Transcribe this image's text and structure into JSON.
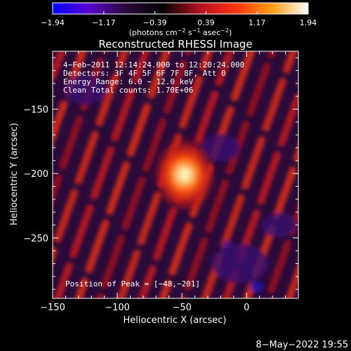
{
  "chart_data": {
    "type": "heatmap",
    "title": "Reconstructed RHESSI Image",
    "xlabel": "Heliocentric X (arcsec)",
    "ylabel": "Heliocentric Y (arcsec)",
    "xlim": [
      -150,
      40
    ],
    "ylim": [
      -297,
      -105
    ],
    "x_ticks": [
      {
        "value": -150,
        "label": "−150"
      },
      {
        "value": -100,
        "label": "−100"
      },
      {
        "value": -50,
        "label": "−50"
      },
      {
        "value": 0,
        "label": "0"
      }
    ],
    "y_ticks": [
      {
        "value": -150,
        "label": "−150"
      },
      {
        "value": -200,
        "label": "−200"
      },
      {
        "value": -250,
        "label": "−250"
      }
    ],
    "colorbar": {
      "range": [
        -1.94,
        1.94
      ],
      "tick_labels": [
        "−1.94",
        "−1.17",
        "−0.39",
        "0.39",
        "1.17",
        "1.94"
      ],
      "unit_parts": [
        "(photons cm",
        "−2",
        " s",
        "−1",
        " asec",
        "−2",
        ")"
      ],
      "colors": [
        "#0000ff",
        "#5a00d0",
        "#2a0a3a",
        "#000000",
        "#b01020",
        "#ff3010",
        "#ff9a10",
        "#ffffff"
      ]
    },
    "annotations": {
      "time_range": "4−Feb−2011 12:14:24.000 to 12:20:24.000",
      "detectors": "Detectors: 3F 4F 5F 6F 7F 8F, Att 0",
      "energy_range": "Energy Range: 6.0 − 12.0 keV",
      "clean": "Clean     Total counts: 1.70E+06",
      "peak_position": "Position of Peak = [−48,−201]"
    },
    "peak": {
      "x": -48,
      "y": -201,
      "intensity": 1.94
    }
  },
  "footer": {
    "timestamp": "8−May−2022 19:55"
  }
}
